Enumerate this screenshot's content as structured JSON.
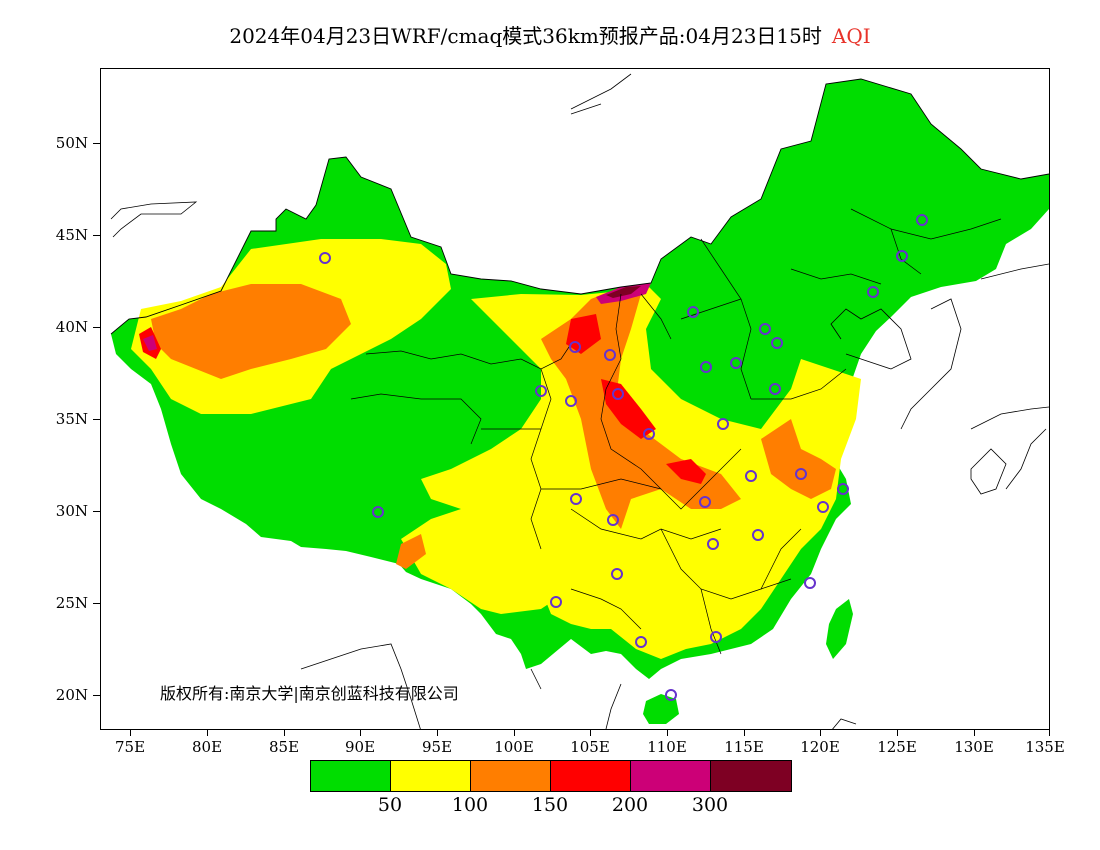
{
  "title": {
    "main": "2024年04月23日WRF/cmaq模式36km预报产品:04月23日15时",
    "variable": "AQI",
    "variable_color": "#e8332a"
  },
  "axes": {
    "lat_labels": [
      "50N",
      "45N",
      "40N",
      "35N",
      "30N",
      "25N",
      "20N"
    ],
    "lon_labels": [
      "75E",
      "80E",
      "85E",
      "90E",
      "95E",
      "100E",
      "105E",
      "110E",
      "115E",
      "120E",
      "125E",
      "130E",
      "135E"
    ]
  },
  "copyright": "版权所有:南京大学|南京创蓝科技有限公司",
  "legend": {
    "colors": [
      "#00dd00",
      "#ffff00",
      "#ff7e00",
      "#ff0000",
      "#cc0077",
      "#7e0023"
    ],
    "labels": [
      "50",
      "100",
      "150",
      "200",
      "300"
    ]
  },
  "map_colors": {
    "good": "#00dd00",
    "moderate": "#ffff00",
    "sensitive": "#ff7e00",
    "unhealthy": "#ff0000",
    "very_unhealthy": "#cc0077",
    "hazardous": "#7e0023",
    "city_marker": "#6633cc"
  }
}
